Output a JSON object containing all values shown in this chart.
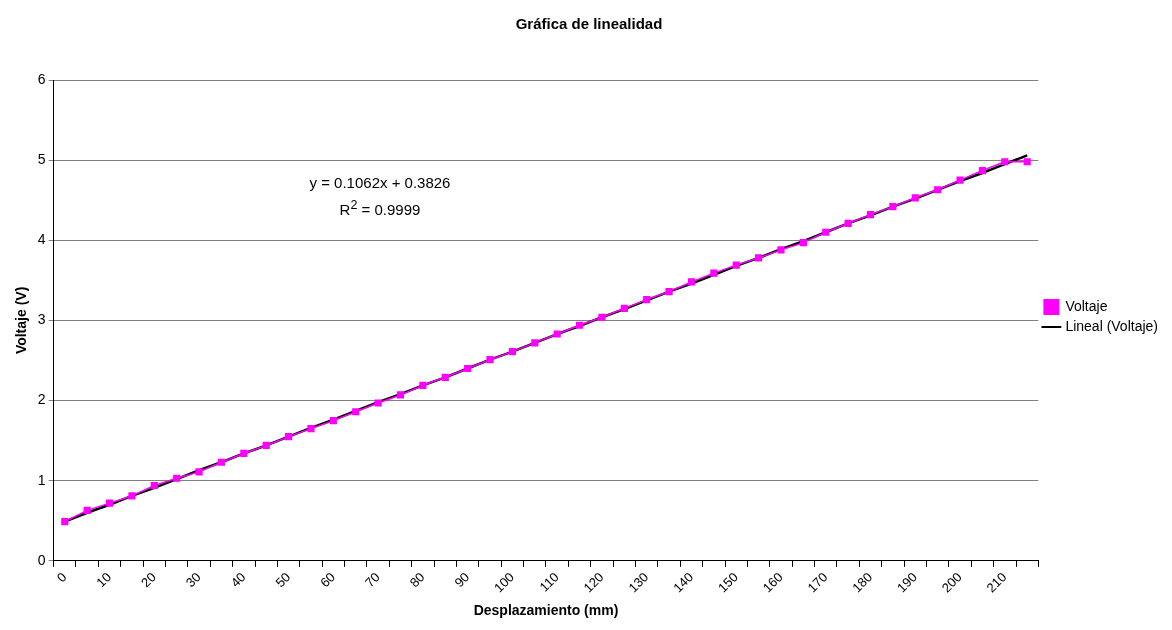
{
  "chart_data": {
    "type": "line",
    "title": "Gráfica de linealidad",
    "xlabel": "Desplazamiento (mm)",
    "ylabel": "Voltaje (V)",
    "categories": [
      "0",
      null,
      "10",
      null,
      "20",
      null,
      "30",
      null,
      "40",
      null,
      "50",
      null,
      "60",
      null,
      "70",
      null,
      "80",
      null,
      "90",
      null,
      "100",
      null,
      "110",
      null,
      "120",
      null,
      "130",
      null,
      "140",
      null,
      "150",
      null,
      "160",
      null,
      "170",
      null,
      "180",
      null,
      "190",
      null,
      "200",
      null,
      "210",
      null
    ],
    "series": [
      {
        "name": "Voltaje",
        "type": "line",
        "marker": "square",
        "color": "#ff00ff",
        "values": [
          0.49,
          0.63,
          0.72,
          0.81,
          0.94,
          1.03,
          1.11,
          1.23,
          1.34,
          1.44,
          1.55,
          1.65,
          1.75,
          1.86,
          1.97,
          2.07,
          2.19,
          2.29,
          2.4,
          2.51,
          2.61,
          2.72,
          2.83,
          2.94,
          3.04,
          3.15,
          3.26,
          3.36,
          3.48,
          3.59,
          3.69,
          3.78,
          3.88,
          3.97,
          4.1,
          4.21,
          4.32,
          4.42,
          4.53,
          4.63,
          4.75,
          4.87,
          4.98,
          4.98
        ]
      },
      {
        "name": "Lineal (Voltaje)",
        "type": "line",
        "marker": "none",
        "color": "#000000",
        "values": [
          0.49,
          0.6,
          0.7,
          0.81,
          0.91,
          1.02,
          1.13,
          1.23,
          1.34,
          1.44,
          1.55,
          1.66,
          1.76,
          1.87,
          1.98,
          2.08,
          2.19,
          2.29,
          2.4,
          2.51,
          2.61,
          2.72,
          2.83,
          2.93,
          3.04,
          3.14,
          3.25,
          3.36,
          3.46,
          3.57,
          3.68,
          3.78,
          3.89,
          3.99,
          4.1,
          4.21,
          4.31,
          4.42,
          4.52,
          4.63,
          4.74,
          4.84,
          4.95,
          5.06
        ]
      }
    ],
    "ylim": [
      0,
      6
    ],
    "yticks": [
      0,
      1,
      2,
      3,
      4,
      5,
      6
    ],
    "grid": "y",
    "legend": "right",
    "annotations": [
      "y = 0.1062x + 0.3826",
      "R$^{2}$ = 0.9999"
    ]
  }
}
